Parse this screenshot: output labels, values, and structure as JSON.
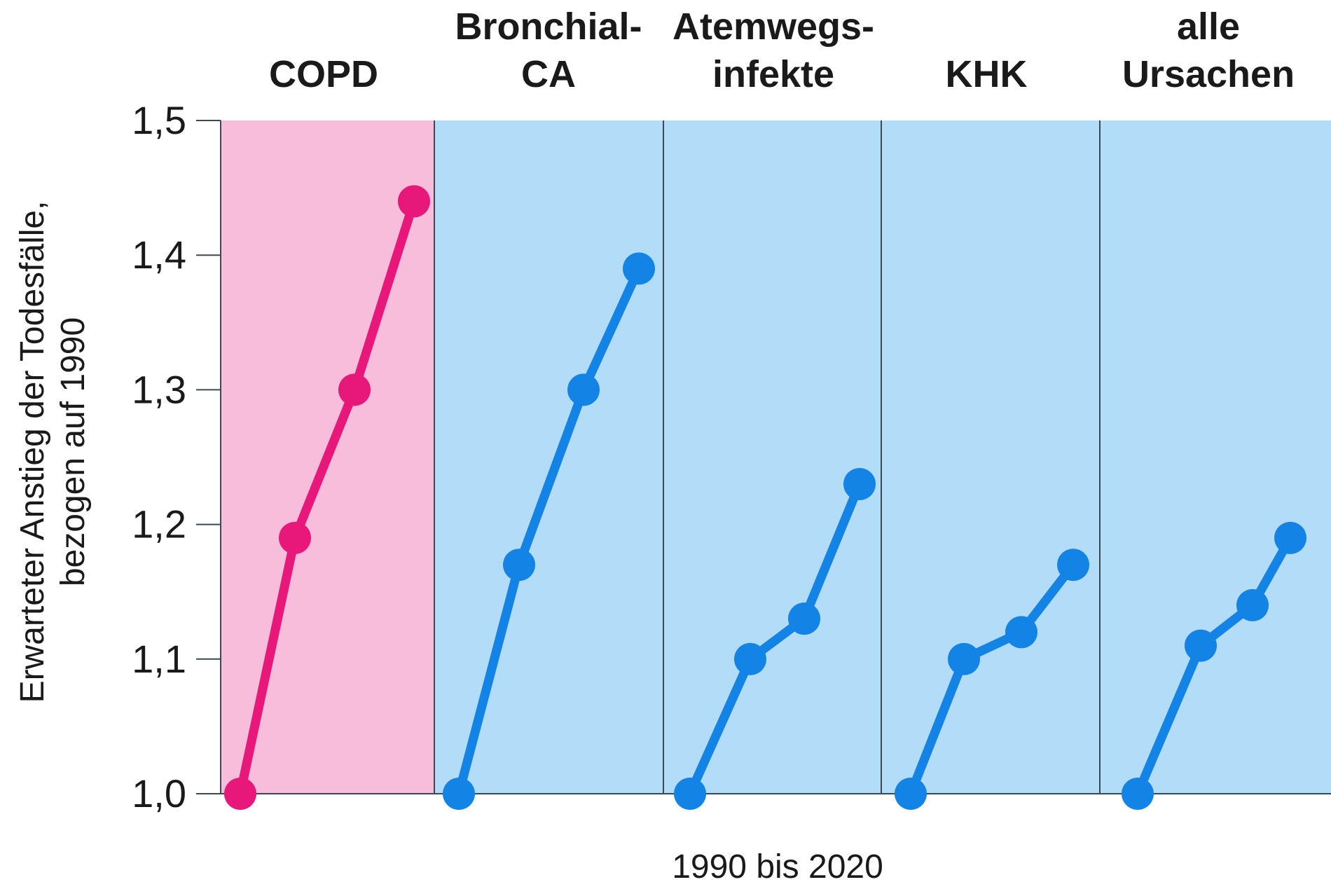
{
  "chart_data": {
    "type": "line",
    "ylabel_lines": [
      "Erwarteter Anstieg der Todesfälle,",
      "bezogen auf 1990"
    ],
    "xlabel": "1990 bis 2020",
    "ylim": [
      1.0,
      1.5
    ],
    "yticks": [
      "1,0",
      "1,1",
      "1,2",
      "1,3",
      "1,4",
      "1,5"
    ],
    "grid": false,
    "panels": [
      {
        "title_lines": [
          "COPD"
        ],
        "color": "#e8177a",
        "background": "#f9bddc",
        "values": [
          1.0,
          1.19,
          1.3,
          1.44
        ]
      },
      {
        "title_lines": [
          "Bronchial-",
          "CA"
        ],
        "color": "#1384e6",
        "background": "#b3dcf9",
        "values": [
          1.0,
          1.17,
          1.3,
          1.39
        ]
      },
      {
        "title_lines": [
          "Atemwegs-",
          "infekte"
        ],
        "color": "#1384e6",
        "background": "#b3dcf9",
        "values": [
          1.0,
          1.1,
          1.13,
          1.23
        ]
      },
      {
        "title_lines": [
          "KHK"
        ],
        "color": "#1384e6",
        "background": "#b3dcf9",
        "values": [
          1.0,
          1.1,
          1.12,
          1.17
        ]
      },
      {
        "title_lines": [
          "alle",
          "Ursachen"
        ],
        "color": "#1384e6",
        "background": "#b3dcf9",
        "values": [
          1.0,
          1.11,
          1.14,
          1.19
        ]
      }
    ]
  }
}
